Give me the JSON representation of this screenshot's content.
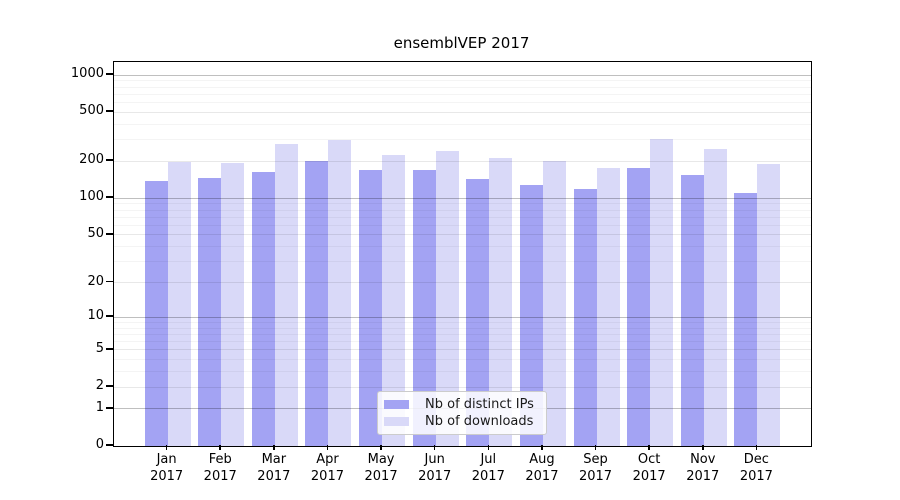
{
  "chart_data": {
    "type": "bar",
    "title": "ensemblVEP 2017",
    "categories": [
      "Jan",
      "Feb",
      "Mar",
      "Apr",
      "May",
      "Jun",
      "Jul",
      "Aug",
      "Sep",
      "Oct",
      "Nov",
      "Dec"
    ],
    "year_label": "2017",
    "series": [
      {
        "name": "Nb of distinct IPs",
        "color": "#a3a3f3",
        "values": [
          137,
          145,
          165,
          202,
          169,
          169,
          143,
          127,
          119,
          175,
          154,
          110
        ]
      },
      {
        "name": "Nb of downloads",
        "color": "#d9d9f8",
        "values": [
          197,
          194,
          277,
          300,
          226,
          242,
          213,
          201,
          176,
          305,
          253,
          190
        ]
      }
    ],
    "yscale": "log10(1+y)",
    "yticks": [
      0,
      1,
      2,
      5,
      10,
      20,
      50,
      100,
      200,
      500,
      1000
    ],
    "ylim": [
      0,
      1275
    ],
    "grid": "on",
    "legend_position": "bottom-center",
    "grid_minor_values": [
      3,
      4,
      6,
      7,
      8,
      9,
      30,
      40,
      60,
      70,
      80,
      90,
      300,
      400,
      600,
      700,
      800,
      900
    ],
    "grid_major_values": [
      2,
      5,
      20,
      50,
      200,
      500
    ],
    "grid_decade_values": [
      1,
      10,
      100,
      1000
    ]
  }
}
